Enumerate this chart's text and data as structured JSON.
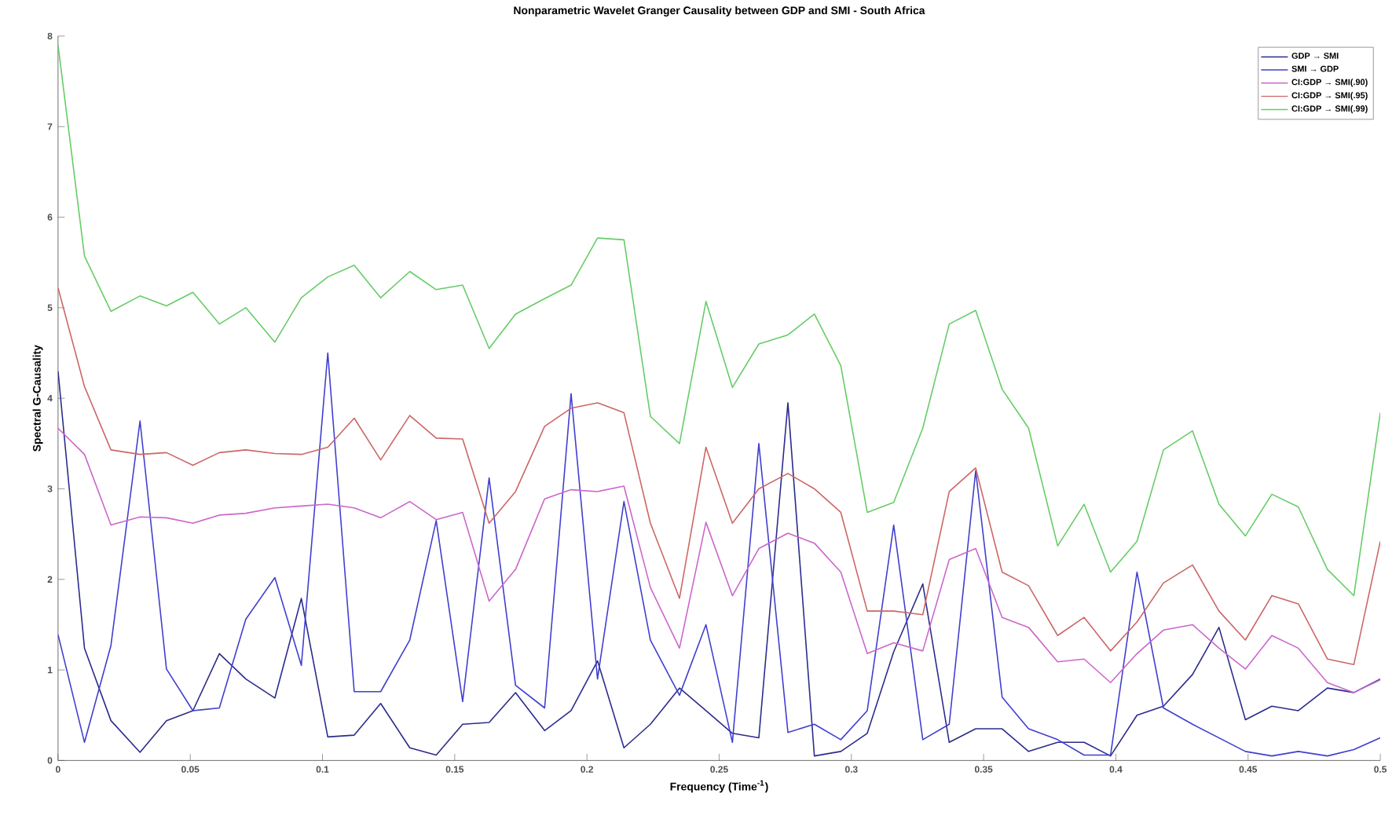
{
  "chart_data": {
    "type": "line",
    "title": "Nonparametric Wavelet Granger Causality between GDP and SMI - South Africa",
    "xlabel": "Frequency (Time$^{-1}$)",
    "ylabel": "Spectral G-Causality",
    "x": [
      0,
      0.01,
      0.02,
      0.031,
      0.041,
      0.051,
      0.061,
      0.071,
      0.082,
      0.092,
      0.102,
      0.112,
      0.122,
      0.133,
      0.143,
      0.153,
      0.163,
      0.173,
      0.184,
      0.194,
      0.204,
      0.214,
      0.224,
      0.235,
      0.245,
      0.255,
      0.265,
      0.276,
      0.286,
      0.296,
      0.306,
      0.316,
      0.327,
      0.337,
      0.347,
      0.357,
      0.367,
      0.378,
      0.388,
      0.398,
      0.408,
      0.418,
      0.429,
      0.439,
      0.449,
      0.459,
      0.469,
      0.48,
      0.49,
      0.5
    ],
    "series": [
      {
        "name": "GDP → SMI",
        "color": "#2b2b8c",
        "values": [
          4.3,
          1.24,
          0.44,
          0.09,
          0.44,
          0.55,
          1.18,
          0.9,
          0.69,
          1.79,
          0.26,
          0.28,
          0.63,
          0.14,
          0.06,
          0.4,
          0.42,
          0.75,
          0.33,
          0.55,
          1.1,
          0.14,
          0.4,
          0.8,
          0.55,
          0.3,
          0.25,
          3.95,
          0.05,
          0.1,
          0.3,
          1.2,
          1.95,
          0.2,
          0.35,
          0.35,
          0.1,
          0.2,
          0.2,
          0.05,
          0.5,
          0.6,
          0.95,
          1.47,
          0.45,
          0.6,
          0.55,
          0.8,
          0.75,
          0.9
        ]
      },
      {
        "name": "SMI → GDP",
        "color": "#3f3fcf",
        "values": [
          1.39,
          0.2,
          1.27,
          3.75,
          1.01,
          0.55,
          0.58,
          1.56,
          2.02,
          1.05,
          4.5,
          0.76,
          0.76,
          1.33,
          2.65,
          0.65,
          3.12,
          0.83,
          0.58,
          4.05,
          0.9,
          2.86,
          1.33,
          0.72,
          1.5,
          0.2,
          3.5,
          0.31,
          0.4,
          0.23,
          0.55,
          2.6,
          0.23,
          0.4,
          3.2,
          0.7,
          0.35,
          0.23,
          0.06,
          0.06,
          2.08,
          0.58,
          0.4,
          0.25,
          0.1,
          0.05,
          0.1,
          0.05,
          0.12,
          0.25
        ]
      },
      {
        "name": "CI:GDP → SMI(.90)",
        "color": "#cc66cc",
        "values": [
          3.67,
          3.38,
          2.6,
          2.69,
          2.68,
          2.62,
          2.71,
          2.73,
          2.79,
          2.81,
          2.83,
          2.79,
          2.68,
          2.86,
          2.66,
          2.74,
          1.76,
          2.11,
          2.89,
          2.99,
          2.97,
          3.03,
          1.91,
          1.24,
          2.63,
          1.82,
          2.34,
          2.51,
          2.4,
          2.08,
          1.18,
          1.3,
          1.21,
          2.22,
          2.34,
          1.58,
          1.47,
          1.09,
          1.12,
          0.86,
          1.18,
          1.44,
          1.5,
          1.24,
          1.01,
          1.38,
          1.24,
          0.86,
          0.75,
          0.89
        ]
      },
      {
        "name": "CI:GDP → SMI(.95)",
        "color": "#cc6666",
        "values": [
          5.22,
          4.13,
          3.43,
          3.38,
          3.4,
          3.26,
          3.4,
          3.43,
          3.39,
          3.38,
          3.46,
          3.78,
          3.32,
          3.81,
          3.56,
          3.55,
          2.62,
          2.97,
          3.69,
          3.89,
          3.95,
          3.84,
          2.62,
          1.79,
          3.46,
          2.62,
          3.0,
          3.17,
          3.0,
          2.74,
          1.65,
          1.65,
          1.61,
          2.97,
          3.23,
          2.08,
          1.93,
          1.38,
          1.58,
          1.21,
          1.53,
          1.96,
          2.16,
          1.65,
          1.33,
          1.82,
          1.73,
          1.12,
          1.06,
          2.42
        ]
      },
      {
        "name": "CI:GDP → SMI(.99)",
        "color": "#66cc66",
        "values": [
          7.9,
          5.57,
          4.96,
          5.13,
          5.02,
          5.17,
          4.82,
          5.0,
          4.62,
          5.11,
          5.34,
          5.47,
          5.11,
          5.4,
          5.2,
          5.25,
          4.55,
          4.93,
          5.1,
          5.25,
          5.77,
          5.75,
          3.8,
          3.5,
          5.07,
          4.12,
          4.6,
          4.7,
          4.93,
          4.36,
          2.74,
          2.85,
          3.67,
          4.82,
          4.97,
          4.1,
          3.67,
          2.37,
          2.83,
          2.08,
          2.42,
          3.43,
          3.64,
          2.83,
          2.48,
          2.94,
          2.8,
          2.11,
          1.82,
          3.84
        ]
      }
    ],
    "xlim": [
      0,
      0.5
    ],
    "ylim": [
      0,
      8
    ],
    "xticks": [
      0,
      0.05,
      0.1,
      0.15,
      0.2,
      0.25,
      0.3,
      0.35,
      0.4,
      0.45,
      0.5
    ],
    "yticks": [
      0,
      1,
      2,
      3,
      4,
      5,
      6,
      7,
      8
    ],
    "grid": false,
    "legend": "top right",
    "marker": "none",
    "line_style": "solid"
  }
}
